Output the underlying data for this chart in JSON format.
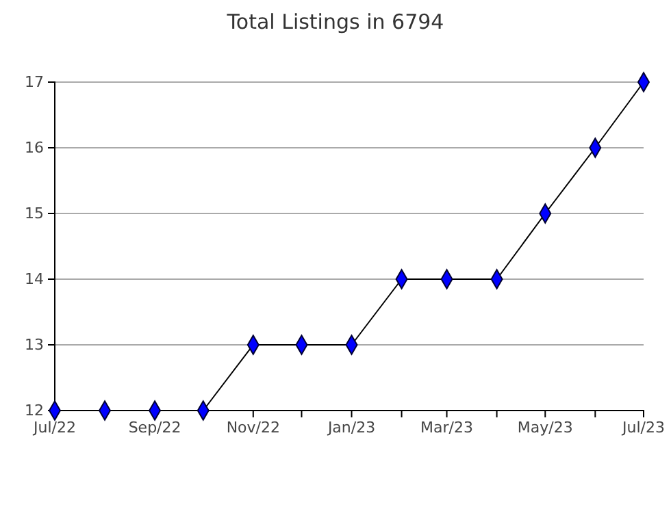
{
  "chart_data": {
    "type": "line",
    "title": "Total Listings in 6794",
    "x": [
      "2022-07",
      "2022-08",
      "2022-09",
      "2022-10",
      "2022-11",
      "2022-12",
      "2023-01",
      "2023-02",
      "2023-03",
      "2023-04",
      "2023-05",
      "2023-06",
      "2023-07"
    ],
    "series": [
      {
        "color": "#0000ff",
        "values": [
          12,
          12,
          12,
          12,
          13,
          13,
          13,
          14,
          14,
          14,
          15,
          16,
          17
        ]
      }
    ],
    "xlim": [
      "2022-07",
      "2023-07"
    ],
    "xticks": [
      {
        "value": "2022-07",
        "label": "Jul/22"
      },
      {
        "value": "2022-08",
        "label": null
      },
      {
        "value": "2022-09",
        "label": "Sep/22"
      },
      {
        "value": "2022-10",
        "label": null
      },
      {
        "value": "2022-11",
        "label": "Nov/22"
      },
      {
        "value": "2022-12",
        "label": null
      },
      {
        "value": "2023-01",
        "label": "Jan/23"
      },
      {
        "value": "2023-02",
        "label": null
      },
      {
        "value": "2023-03",
        "label": "Mar/23"
      },
      {
        "value": "2023-04",
        "label": null
      },
      {
        "value": "2023-05",
        "label": "May/23"
      },
      {
        "value": "2023-06",
        "label": null
      },
      {
        "value": "2023-07",
        "label": "Jul/23"
      }
    ],
    "ylim": [
      12,
      17
    ],
    "yticks": [
      12,
      13,
      14,
      15,
      16,
      17
    ],
    "grid": "y",
    "marker": "diamond",
    "line_style": "solid"
  }
}
